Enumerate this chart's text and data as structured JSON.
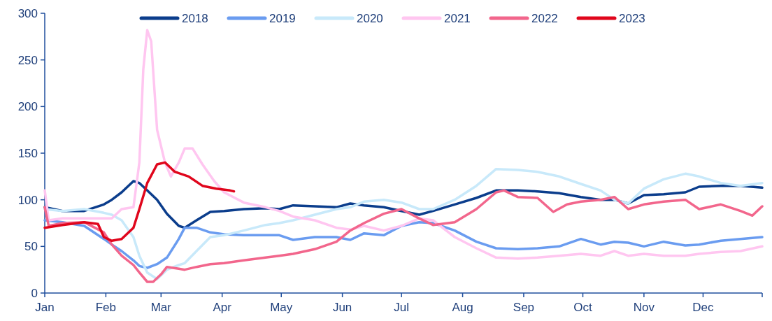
{
  "chart_data": {
    "type": "line",
    "xlim": [
      "--01-01",
      "--12-31"
    ],
    "xticks": [
      {
        "value": "--01-01",
        "label": "Jan"
      },
      {
        "value": "--02-01",
        "label": "Feb"
      },
      {
        "value": "--03-01",
        "label": "Mar"
      },
      {
        "value": "--04-01",
        "label": "Apr"
      },
      {
        "value": "--05-01",
        "label": "May"
      },
      {
        "value": "--06-01",
        "label": "Jun"
      },
      {
        "value": "--07-01",
        "label": "Jul"
      },
      {
        "value": "--08-01",
        "label": "Aug"
      },
      {
        "value": "--09-01",
        "label": "Sep"
      },
      {
        "value": "--10-01",
        "label": "Oct"
      },
      {
        "value": "--11-01",
        "label": "Nov"
      },
      {
        "value": "--12-01",
        "label": "Dec"
      }
    ],
    "ylim": [
      0,
      300
    ],
    "yticks": [
      0,
      50,
      100,
      150,
      200,
      250,
      300
    ],
    "legend": "top",
    "grid": false,
    "line_style": "solid",
    "marker": "none",
    "series": [
      {
        "name": "2018",
        "color": "#0b3d8c",
        "x": [
          "--01-01",
          "--01-10",
          "--01-21",
          "--01-31",
          "--02-04",
          "--02-09",
          "--02-15",
          "--02-18",
          "--02-22",
          "--02-27",
          "--03-04",
          "--03-10",
          "--03-13",
          "--03-19",
          "--03-26",
          "--04-02",
          "--04-12",
          "--04-23",
          "--04-30",
          "--05-07",
          "--05-18",
          "--05-29",
          "--06-05",
          "--06-12",
          "--06-22",
          "--07-01",
          "--07-10",
          "--07-17",
          "--07-28",
          "--08-08",
          "--08-18",
          "--08-29",
          "--09-08",
          "--09-19",
          "--09-30",
          "--10-10",
          "--10-17",
          "--10-24",
          "--11-01",
          "--11-11",
          "--11-22",
          "--11-29",
          "--12-10",
          "--12-20",
          "--12-31"
        ],
        "values": [
          92,
          88,
          88,
          95,
          100,
          108,
          120,
          118,
          110,
          100,
          85,
          72,
          70,
          78,
          87,
          88,
          90,
          91,
          90,
          94,
          93,
          92,
          96,
          94,
          92,
          88,
          84,
          88,
          95,
          102,
          110,
          110,
          109,
          107,
          103,
          100,
          100,
          96,
          105,
          106,
          108,
          114,
          115,
          115,
          113
        ]
      },
      {
        "name": "2019",
        "color": "#6a9cf0",
        "x": [
          "--01-01",
          "--01-10",
          "--01-21",
          "--01-31",
          "--02-04",
          "--02-09",
          "--02-15",
          "--02-18",
          "--02-22",
          "--02-27",
          "--03-04",
          "--03-10",
          "--03-13",
          "--03-19",
          "--03-26",
          "--04-02",
          "--04-12",
          "--04-23",
          "--04-30",
          "--05-07",
          "--05-18",
          "--05-29",
          "--06-05",
          "--06-12",
          "--06-22",
          "--07-01",
          "--07-10",
          "--07-17",
          "--07-28",
          "--08-08",
          "--08-18",
          "--08-29",
          "--09-08",
          "--09-19",
          "--09-30",
          "--10-10",
          "--10-17",
          "--10-24",
          "--11-01",
          "--11-11",
          "--11-22",
          "--11-29",
          "--12-10",
          "--12-20",
          "--12-31"
        ],
        "values": [
          78,
          76,
          72,
          58,
          52,
          45,
          35,
          29,
          27,
          31,
          38,
          58,
          70,
          70,
          65,
          63,
          62,
          62,
          62,
          57,
          60,
          60,
          57,
          64,
          62,
          72,
          76,
          75,
          67,
          55,
          48,
          47,
          48,
          50,
          58,
          52,
          55,
          54,
          50,
          55,
          51,
          52,
          56,
          58,
          60
        ]
      },
      {
        "name": "2020",
        "color": "#c8e9fa",
        "x": [
          "--01-01",
          "--01-10",
          "--01-21",
          "--01-31",
          "--02-04",
          "--02-09",
          "--02-15",
          "--02-18",
          "--02-22",
          "--02-27",
          "--03-04",
          "--03-10",
          "--03-13",
          "--03-19",
          "--03-26",
          "--04-02",
          "--04-12",
          "--04-23",
          "--04-30",
          "--05-07",
          "--05-18",
          "--05-29",
          "--06-05",
          "--06-12",
          "--06-22",
          "--07-01",
          "--07-10",
          "--07-17",
          "--07-28",
          "--08-08",
          "--08-18",
          "--08-29",
          "--09-08",
          "--09-19",
          "--09-30",
          "--10-10",
          "--10-17",
          "--10-24",
          "--11-01",
          "--11-11",
          "--11-22",
          "--11-29",
          "--12-10",
          "--12-20",
          "--12-31"
        ],
        "values": [
          90,
          88,
          90,
          86,
          84,
          78,
          60,
          40,
          22,
          15,
          25,
          30,
          32,
          45,
          60,
          62,
          67,
          73,
          75,
          78,
          84,
          90,
          92,
          98,
          100,
          97,
          90,
          90,
          100,
          115,
          133,
          132,
          130,
          125,
          117,
          110,
          100,
          96,
          112,
          122,
          128,
          125,
          118,
          115,
          118
        ]
      },
      {
        "name": "2021",
        "color": "#ffc6f0",
        "x": [
          "--01-01",
          "--01-03",
          "--01-10",
          "--01-21",
          "--01-31",
          "--02-04",
          "--02-09",
          "--02-15",
          "--02-18",
          "--02-20",
          "--02-22",
          "--02-24",
          "--02-27",
          "--03-03",
          "--03-06",
          "--03-10",
          "--03-13",
          "--03-17",
          "--03-22",
          "--03-28",
          "--04-02",
          "--04-12",
          "--04-23",
          "--04-30",
          "--05-07",
          "--05-18",
          "--05-29",
          "--06-05",
          "--06-12",
          "--06-22",
          "--07-01",
          "--07-10",
          "--07-17",
          "--07-28",
          "--08-08",
          "--08-18",
          "--08-29",
          "--09-08",
          "--09-19",
          "--09-30",
          "--10-10",
          "--10-17",
          "--10-24",
          "--11-01",
          "--11-11",
          "--11-22",
          "--11-29",
          "--12-10",
          "--12-20",
          "--12-31"
        ],
        "values": [
          110,
          78,
          80,
          80,
          80,
          80,
          90,
          92,
          140,
          240,
          282,
          270,
          175,
          140,
          125,
          140,
          155,
          155,
          138,
          120,
          108,
          97,
          92,
          88,
          82,
          78,
          70,
          68,
          72,
          67,
          72,
          80,
          78,
          60,
          48,
          38,
          37,
          38,
          40,
          42,
          40,
          45,
          40,
          42,
          40,
          40,
          42,
          44,
          45,
          50
        ]
      },
      {
        "name": "2022",
        "color": "#f2668c",
        "x": [
          "--01-01",
          "--01-03",
          "--01-10",
          "--01-21",
          "--01-31",
          "--02-04",
          "--02-09",
          "--02-15",
          "--02-18",
          "--02-22",
          "--02-25",
          "--03-01",
          "--03-04",
          "--03-10",
          "--03-13",
          "--03-19",
          "--03-26",
          "--04-02",
          "--04-12",
          "--04-23",
          "--04-30",
          "--05-07",
          "--05-18",
          "--05-29",
          "--06-05",
          "--06-12",
          "--06-22",
          "--07-01",
          "--07-10",
          "--07-17",
          "--07-28",
          "--08-08",
          "--08-18",
          "--08-22",
          "--08-29",
          "--09-08",
          "--09-16",
          "--09-23",
          "--09-30",
          "--10-10",
          "--10-17",
          "--10-24",
          "--11-01",
          "--11-11",
          "--11-22",
          "--11-29",
          "--12-10",
          "--12-20",
          "--12-26",
          "--12-31"
        ],
        "values": [
          92,
          72,
          75,
          76,
          65,
          52,
          40,
          30,
          22,
          12,
          12,
          20,
          28,
          26,
          25,
          28,
          31,
          32,
          35,
          38,
          40,
          42,
          47,
          55,
          67,
          75,
          85,
          90,
          80,
          73,
          76,
          90,
          108,
          110,
          103,
          102,
          87,
          95,
          98,
          100,
          103,
          90,
          95,
          98,
          100,
          90,
          95,
          88,
          83,
          93
        ]
      },
      {
        "name": "2023",
        "color": "#e0061c",
        "x": [
          "--01-01",
          "--01-10",
          "--01-21",
          "--01-28",
          "--01-31",
          "--02-04",
          "--02-09",
          "--02-15",
          "--02-18",
          "--02-22",
          "--02-27",
          "--03-03",
          "--03-08",
          "--03-15",
          "--03-22",
          "--03-29",
          "--04-05",
          "--04-07"
        ],
        "values": [
          70,
          73,
          76,
          74,
          60,
          56,
          58,
          70,
          90,
          118,
          138,
          140,
          130,
          125,
          115,
          112,
          110,
          109
        ]
      }
    ]
  }
}
